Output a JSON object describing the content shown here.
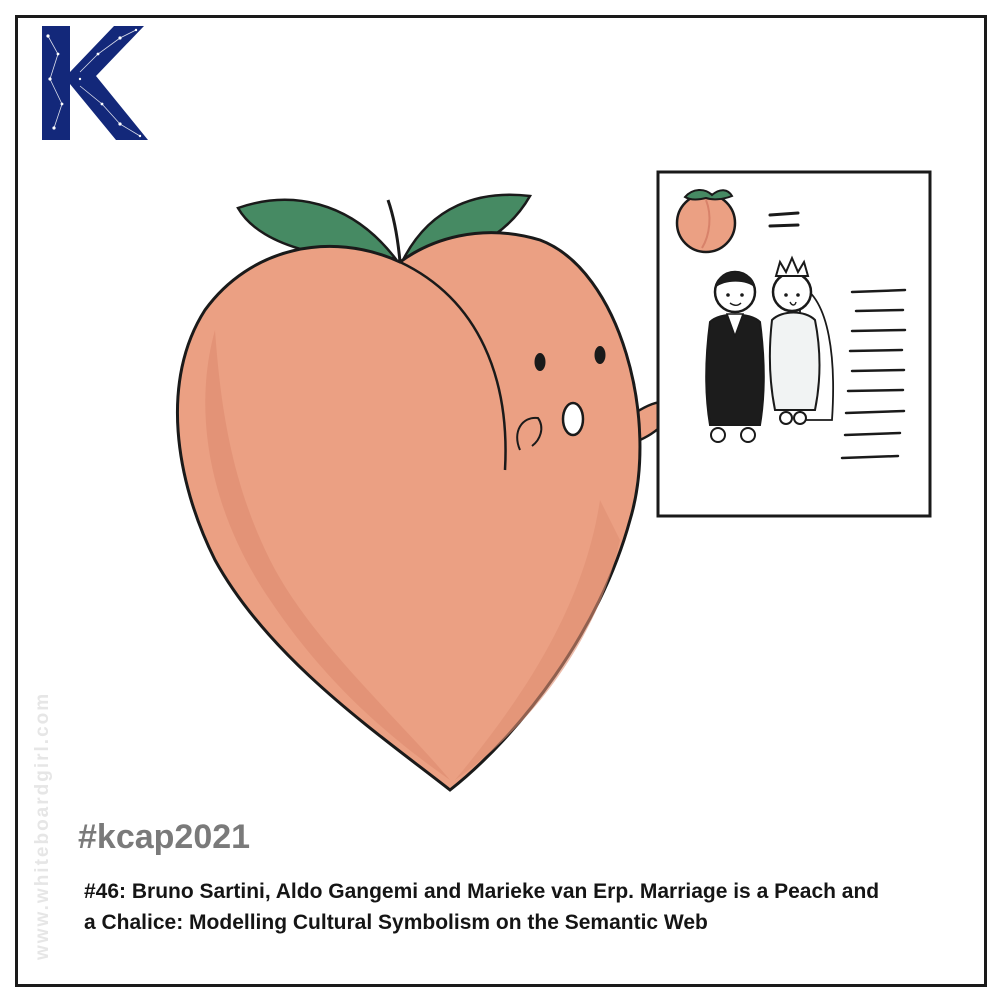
{
  "logo": {
    "letter": "K",
    "color": "#13287a"
  },
  "side_credit": "www.whiteboardgirl.com",
  "hashtag": "#kcap2021",
  "caption": {
    "line1": "#46: Bruno Sartini, Aldo Gangemi and Marieke van Erp. Marriage is a Peach and",
    "line2": "a Chalice: Modelling Cultural Symbolism on the Semantic Web"
  },
  "colors": {
    "peach": "#eba083",
    "peach_shadow": "#e08f73",
    "leaf": "#468a63",
    "suit": "#1c1c1c",
    "dress": "#f1f3f3"
  },
  "icons": [
    "k-logo",
    "peach-character",
    "peach-icon",
    "equals-icon",
    "groom-figure",
    "bride-figure"
  ]
}
